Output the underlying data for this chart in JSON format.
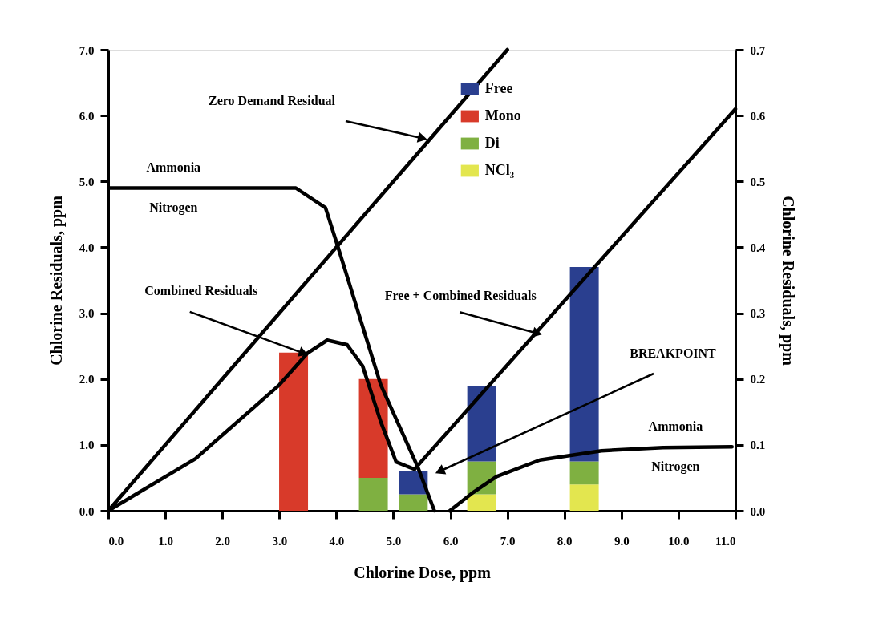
{
  "chart_data": {
    "type": "line",
    "xlabel": "Chlorine Dose, ppm",
    "ylabel": "Chlorine Residuals, ppm",
    "y2label": "Chlorine Residuals, ppm",
    "xlim": [
      0,
      11
    ],
    "ylim": [
      0,
      7
    ],
    "y2lim": [
      0,
      0.7
    ],
    "xticks": [
      {
        "value": 0,
        "label": "0.0"
      },
      {
        "value": 1,
        "label": "1.0"
      },
      {
        "value": 2,
        "label": "2.0"
      },
      {
        "value": 3,
        "label": "3.0"
      },
      {
        "value": 4,
        "label": "4.0"
      },
      {
        "value": 5,
        "label": "5.0"
      },
      {
        "value": 6,
        "label": "6.0"
      },
      {
        "value": 7,
        "label": "7.0"
      },
      {
        "value": 8,
        "label": "8.0"
      },
      {
        "value": 9,
        "label": "9.0"
      },
      {
        "value": 10,
        "label": "10.0"
      },
      {
        "value": 11,
        "label": "11.0"
      }
    ],
    "yticks": [
      {
        "value": 0,
        "label": "0.0"
      },
      {
        "value": 1,
        "label": "1.0"
      },
      {
        "value": 2,
        "label": "2.0"
      },
      {
        "value": 3,
        "label": "3.0"
      },
      {
        "value": 4,
        "label": "4.0"
      },
      {
        "value": 5,
        "label": "5.0"
      },
      {
        "value": 6,
        "label": "6.0"
      },
      {
        "value": 7,
        "label": "7.0"
      }
    ],
    "y2ticks": [
      {
        "value": 0,
        "label": "0.0"
      },
      {
        "value": 0.1,
        "label": "0.1"
      },
      {
        "value": 0.2,
        "label": "0.2"
      },
      {
        "value": 0.3,
        "label": "0.3"
      },
      {
        "value": 0.4,
        "label": "0.4"
      },
      {
        "value": 0.5,
        "label": "0.5"
      },
      {
        "value": 0.6,
        "label": "0.6"
      },
      {
        "value": 0.7,
        "label": "0.7"
      }
    ],
    "grid": false,
    "legend": "top right",
    "stacked": true,
    "x": [
      3.25,
      4.65,
      5.35,
      6.55,
      8.35
    ],
    "series": [
      {
        "type": "bar",
        "name": "NCl₃",
        "color": "#e3e64f",
        "values": [
          null,
          null,
          null,
          0.25,
          0.4
        ]
      },
      {
        "type": "bar",
        "name": "Di",
        "color": "#7fb041",
        "values": [
          null,
          0.5,
          0.25,
          0.5,
          0.35
        ]
      },
      {
        "type": "bar",
        "name": "Mono",
        "color": "#d83a2a",
        "values": [
          2.4,
          1.5,
          null,
          null,
          null
        ]
      },
      {
        "type": "bar",
        "name": "Free",
        "color": "#2a3f8f",
        "values": [
          null,
          null,
          0.35,
          1.15,
          2.95
        ]
      },
      {
        "color": "#000000",
        "x": [
          0,
          7.0
        ],
        "values": [
          0,
          7.0
        ]
      },
      {
        "name": "Ammonia Nitrogen",
        "color": "#000000",
        "x": [
          0,
          3.29,
          3.81,
          4.02,
          4.78,
          5.43,
          5.72
        ],
        "values": [
          4.9,
          4.9,
          4.6,
          4.03,
          1.91,
          0.66,
          0
        ]
      },
      {
        "color": "#000000",
        "x": [
          0,
          1.53,
          3.0,
          3.49,
          3.84,
          4.19,
          4.46,
          4.78,
          5.05,
          5.37
        ],
        "values": [
          0,
          0.79,
          1.91,
          2.39,
          2.59,
          2.52,
          2.2,
          1.35,
          0.74,
          0.63
        ]
      },
      {
        "color": "#000000",
        "x": [
          5.37,
          11.0
        ],
        "values": [
          0.63,
          6.1
        ]
      },
      {
        "name": "Ammonia Nitrogen",
        "axis": "y2",
        "color": "#000000",
        "x": [
          5.99,
          6.37,
          6.81,
          7.57,
          8.65,
          9.73,
          10.94
        ],
        "values": [
          0,
          0.026,
          0.052,
          0.077,
          0.091,
          0.096,
          0.097
        ]
      }
    ],
    "annotations": [
      "Zero Demand Residual",
      {
        "text": "Combined Residuals",
        "x": 3.4,
        "y": 2.4
      },
      {
        "text": "Free + Combined Residuals",
        "x": 7.5,
        "y": 2.7
      },
      "BREAKPOINT"
    ]
  }
}
